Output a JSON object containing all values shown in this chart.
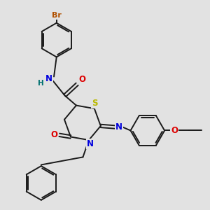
{
  "bg_color": "#e2e2e2",
  "bond_color": "#1a1a1a",
  "bond_width": 1.4,
  "atom_colors": {
    "Br": "#b05000",
    "N": "#0000dd",
    "O": "#dd0000",
    "S": "#b8b800",
    "H": "#007070",
    "C": "#1a1a1a"
  },
  "font_size": 7.5,
  "figsize": [
    3.0,
    3.0
  ],
  "dpi": 100
}
